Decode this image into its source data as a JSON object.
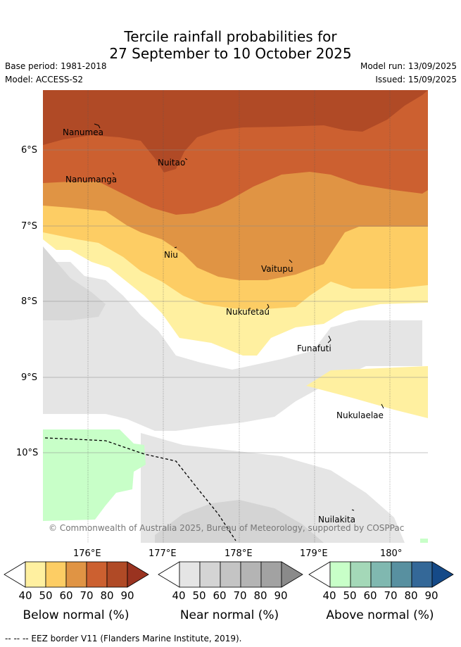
{
  "title": {
    "line1": "Tercile rainfall probabilities for",
    "line2": "27 September to 10 October 2025"
  },
  "meta": {
    "base_period": "Base period: 1981-2018",
    "model": "Model: ACCESS-S2",
    "model_run": "Model run: 13/09/2025",
    "issued": "Issued: 15/09/2025"
  },
  "map": {
    "lat_ticks": [
      {
        "value": -6,
        "label": "6°S"
      },
      {
        "value": -7,
        "label": "7°S"
      },
      {
        "value": -8,
        "label": "8°S"
      },
      {
        "value": -9,
        "label": "9°S"
      },
      {
        "value": -10,
        "label": "10°S"
      }
    ],
    "lon_ticks": [
      {
        "value": 176,
        "label": "176°E"
      },
      {
        "value": 177,
        "label": "177°E"
      },
      {
        "value": 178,
        "label": "178°E"
      },
      {
        "value": 179,
        "label": "179°E"
      },
      {
        "value": 180,
        "label": "180°"
      }
    ],
    "places": [
      {
        "name": "Nanumea",
        "lon": 176.13,
        "lat": -5.68
      },
      {
        "name": "Nuitao",
        "lon": 177.3,
        "lat": -6.1
      },
      {
        "name": "Nanumanga",
        "lon": 176.33,
        "lat": -6.3
      },
      {
        "name": "Niu",
        "lon": 177.17,
        "lat": -7.28
      },
      {
        "name": "Vaitupu",
        "lon": 178.68,
        "lat": -7.48
      },
      {
        "name": "Nukufetau",
        "lon": 178.38,
        "lat": -8.02
      },
      {
        "name": "Funafuti",
        "lon": 179.19,
        "lat": -8.52
      },
      {
        "name": "Nukulaelae",
        "lon": 179.84,
        "lat": -9.38
      },
      {
        "name": "Nuilakita",
        "lon": 179.5,
        "lat": -10.78
      }
    ],
    "copyright": "© Commonwealth of Australia 2025, Bureau of Meteorology, supported by COSPPac"
  },
  "colorbars": [
    {
      "name": "below",
      "label": "Below normal (%)",
      "ticks": [
        "40",
        "50",
        "60",
        "70",
        "80",
        "90"
      ],
      "colors": [
        "#ffffff",
        "#fff0a0",
        "#fdcd64",
        "#e09444",
        "#cc6030",
        "#b04a26",
        "#9a3320"
      ]
    },
    {
      "name": "near",
      "label": "Near normal (%)",
      "ticks": [
        "40",
        "50",
        "60",
        "70",
        "80",
        "90"
      ],
      "colors": [
        "#ffffff",
        "#e5e5e5",
        "#d4d4d4",
        "#c4c4c4",
        "#b4b4b4",
        "#a2a2a2",
        "#8a8a8a"
      ]
    },
    {
      "name": "above",
      "label": "Above normal (%)",
      "ticks": [
        "40",
        "50",
        "60",
        "70",
        "80",
        "90"
      ],
      "colors": [
        "#ffffff",
        "#c8ffc8",
        "#a4d8b8",
        "#80b8b0",
        "#5890a0",
        "#346898",
        "#154a88"
      ]
    }
  ],
  "legend": {
    "eez": "--  --  -- EEZ border V11 (Flanders Marine Institute, 2019)."
  }
}
